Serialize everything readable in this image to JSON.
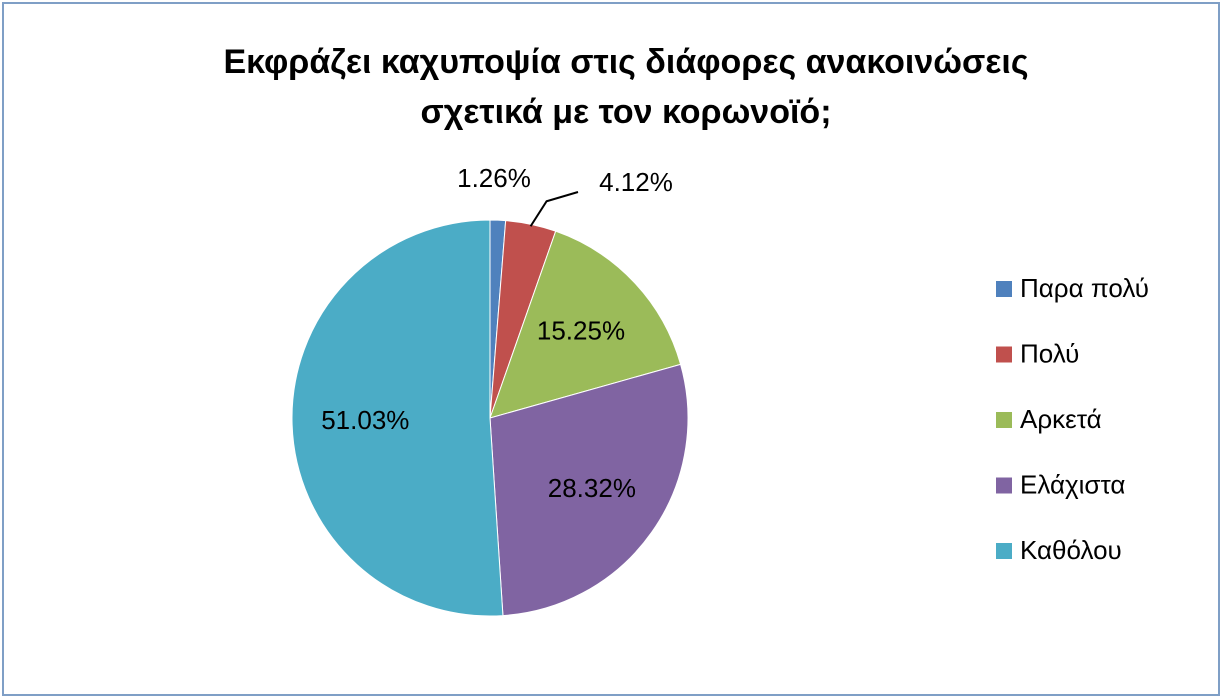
{
  "chart_data": {
    "type": "pie",
    "title": [
      "Εκφράζει καχυποψία στις διάφορες ανακοινώσεις",
      "σχετικά με τον κορωνοϊό;"
    ],
    "categories": [
      "Παρα πολύ",
      "Πολύ",
      "Αρκετά",
      "Ελάχιστα",
      "Καθόλου"
    ],
    "values": [
      1.26,
      4.12,
      15.25,
      28.32,
      51.03
    ],
    "value_labels": [
      "1.26%",
      "4.12%",
      "15.25%",
      "28.32%",
      "51.03%"
    ],
    "colors": [
      "#4f81bd",
      "#c0504d",
      "#9bbb59",
      "#8064a2",
      "#4bacc6"
    ],
    "legend": "right"
  }
}
